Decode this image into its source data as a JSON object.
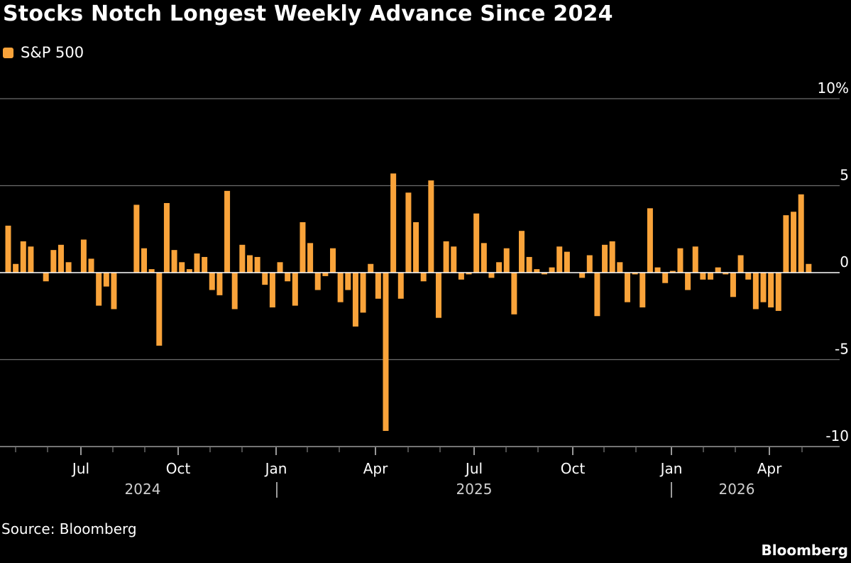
{
  "title": "Stocks Notch Longest Weekly Advance Since 2024",
  "source": "Source: Bloomberg",
  "brand": "Bloomberg",
  "colors": {
    "bar": "#f9a33a",
    "grid": "#6b6b6b",
    "background": "#000000",
    "text": "#ffffff"
  },
  "chart_data": {
    "type": "bar",
    "title": "Stocks Notch Longest Weekly Advance Since 2024",
    "series": [
      {
        "name": "S&P 500",
        "values": [
          2.7,
          0.5,
          1.8,
          1.5,
          0.0,
          -0.5,
          1.3,
          1.6,
          0.6,
          0.0,
          1.9,
          0.8,
          -1.9,
          -0.8,
          -2.1,
          0.0,
          0.0,
          3.9,
          1.4,
          0.2,
          -4.2,
          4.0,
          1.3,
          0.6,
          0.2,
          1.1,
          0.9,
          -1.0,
          -1.3,
          4.7,
          -2.1,
          1.6,
          1.0,
          0.9,
          -0.7,
          -2.0,
          0.6,
          -0.5,
          -1.9,
          2.9,
          1.7,
          -1.0,
          -0.2,
          1.4,
          -1.7,
          -1.0,
          -3.1,
          -2.3,
          0.5,
          -1.5,
          -9.1,
          5.7,
          -1.5,
          4.6,
          2.9,
          -0.5,
          5.3,
          -2.6,
          1.8,
          1.5,
          -0.4,
          -0.1,
          3.4,
          1.7,
          -0.3,
          0.6,
          1.4,
          -2.4,
          2.4,
          0.9,
          0.2,
          -0.1,
          0.3,
          1.5,
          1.2,
          0.0,
          -0.3,
          1.0,
          -2.5,
          1.6,
          1.8,
          0.6,
          -1.7,
          -0.1,
          -2.0,
          3.7,
          0.3,
          -0.6,
          0.1,
          1.4,
          -1.0,
          1.5,
          -0.4,
          -0.4,
          0.3,
          -0.1,
          -1.4,
          1.0,
          -0.4,
          -2.1,
          -1.7,
          -2.0,
          -2.2,
          3.3,
          3.5,
          4.5,
          0.5
        ]
      }
    ],
    "yticks": [
      "10%",
      "5",
      "0",
      "-5",
      "-10"
    ],
    "ylim": [
      -10,
      10
    ],
    "xticks": [
      "Jul",
      "Oct",
      "Jan",
      "Apr",
      "Jul",
      "Oct",
      "Jan",
      "Apr"
    ],
    "years": [
      "2024",
      "2025",
      "2026"
    ],
    "grid": true,
    "legend_position": "top-left"
  }
}
